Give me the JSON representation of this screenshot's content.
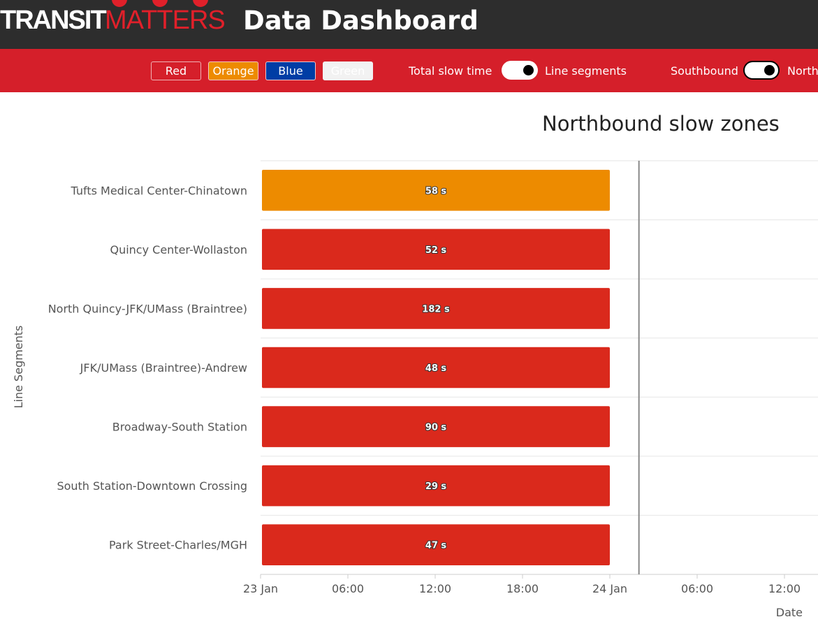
{
  "header": {
    "logo_transit": "TRANSIT",
    "logo_matters": "MATTERS",
    "title": "Data Dashboard"
  },
  "controls": {
    "lines": [
      {
        "label": "Red",
        "color": "#d51f2a"
      },
      {
        "label": "Orange",
        "color": "#ed8b00"
      },
      {
        "label": "Blue",
        "color": "#003da5"
      },
      {
        "label": "Green",
        "color": "#f2f2f2"
      }
    ],
    "toggle_left_label": "Total slow time",
    "toggle_right_label": "Line segments",
    "direction_left_label": "Southbound",
    "direction_right_label": "North"
  },
  "chart_data": {
    "type": "bar",
    "title": "Northbound slow zones",
    "ylabel": "Line Segments",
    "xlabel": "Date",
    "x_ticks": [
      "23 Jan",
      "06:00",
      "12:00",
      "18:00",
      "24 Jan",
      "06:00",
      "12:00"
    ],
    "categories": [
      "Tufts Medical Center-Chinatown",
      "Quincy Center-Wollaston",
      "North Quincy-JFK/UMass (Braintree)",
      "JFK/UMass (Braintree)-Andrew",
      "Broadway-South Station",
      "South Station-Downtown Crossing",
      "Park Street-Charles/MGH"
    ],
    "bars": [
      {
        "segment": "Tufts Medical Center-Chinatown",
        "start": "23 Jan 00:00",
        "end": "24 Jan 00:00",
        "delay_s": 58,
        "label": "58 s",
        "color": "#ed8b00"
      },
      {
        "segment": "Quincy Center-Wollaston",
        "start": "23 Jan 00:00",
        "end": "24 Jan 00:00",
        "delay_s": 52,
        "label": "52 s",
        "color": "#da291c"
      },
      {
        "segment": "North Quincy-JFK/UMass (Braintree)",
        "start": "23 Jan 00:00",
        "end": "24 Jan 00:00",
        "delay_s": 182,
        "label": "182 s",
        "color": "#da291c"
      },
      {
        "segment": "JFK/UMass (Braintree)-Andrew",
        "start": "23 Jan 00:00",
        "end": "24 Jan 00:00",
        "delay_s": 48,
        "label": "48 s",
        "color": "#da291c"
      },
      {
        "segment": "Broadway-South Station",
        "start": "23 Jan 00:00",
        "end": "24 Jan 00:00",
        "delay_s": 90,
        "label": "90 s",
        "color": "#da291c"
      },
      {
        "segment": "South Station-Downtown Crossing",
        "start": "23 Jan 00:00",
        "end": "24 Jan 00:00",
        "delay_s": 29,
        "label": "29 s",
        "color": "#da291c"
      },
      {
        "segment": "Park Street-Charles/MGH",
        "start": "23 Jan 00:00",
        "end": "24 Jan 00:00",
        "delay_s": 47,
        "label": "47 s",
        "color": "#da291c"
      }
    ],
    "today_marker": "24 Jan 02:00",
    "grid": true
  }
}
